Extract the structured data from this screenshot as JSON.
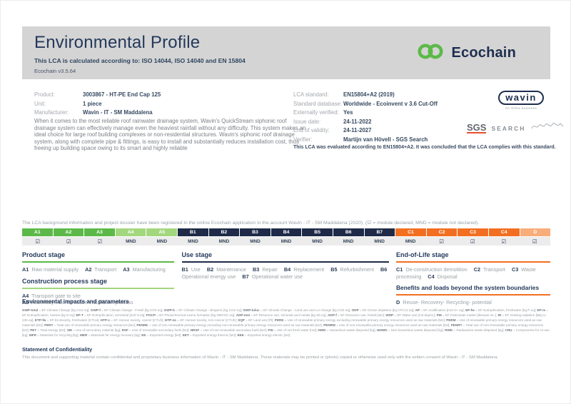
{
  "header": {
    "title": "Environmental Profile",
    "subtitle": "This LCA is calculated according to: ISO 14044, ISO 14040 and EN 15804",
    "version": "Ecochain v3.5.64",
    "logo_text": "Ecochain"
  },
  "product_info": {
    "rows": [
      {
        "label": "Product:",
        "value": "3003867 - HT-PE End Cap 125"
      },
      {
        "label": "Unit:",
        "value": "1 piece"
      },
      {
        "label": "Manufacturer:",
        "value": "Wavin - IT - SM Maddalena"
      }
    ],
    "description": "When it comes to the most reliable roof rainwater drainage system, Wavin's QuickStream siphonic roof drainage system can effectively manage even the heaviest rainfall without any difficulty. This system makes an ideal choice for large roof building complexes or non-residential structures. Wavin's siphonic roof drainage system, along with complete pipe & fittings, is easy to install and substantially reduces installation cost, thus freeing up building space owing to its smart and highly reliable"
  },
  "lca_info": {
    "rows": [
      {
        "label": "LCA standard:",
        "value": "EN15804+A2 (2019)"
      },
      {
        "label": "Standard database:",
        "value": "Worldwide - Ecoinvent v 3.6 Cut-Off"
      },
      {
        "label": "Externally verified:",
        "value": "Yes"
      },
      {
        "label": "Issue date:",
        "value": "24-11-2022"
      },
      {
        "label": "End of validity:",
        "value": "24-11-2027"
      },
      {
        "label": "Verifier:",
        "value": "Martijn van Hövell - SGS Search"
      }
    ],
    "evaluation": "This LCA was evaluated according to EN15804+A2. It was concluded that the LCA complies with this standard."
  },
  "logos": {
    "wavin": "wavin",
    "wavin_sub": "An Orbia business",
    "sgs": "SGS",
    "search": "SEARCH"
  },
  "modules": {
    "intro": "The LCA background information and project dossier have been registered in the online Ecochain application in the account Wavin - IT - SM Maddalena (2020). (☑ = module declared, MND = module not declared).",
    "columns": [
      {
        "code": "A1",
        "status": "☑",
        "group": "a"
      },
      {
        "code": "A2",
        "status": "☑",
        "group": "a"
      },
      {
        "code": "A3",
        "status": "☑",
        "group": "a"
      },
      {
        "code": "A4",
        "status": "MND",
        "group": "a-light"
      },
      {
        "code": "A5",
        "status": "MND",
        "group": "a-light"
      },
      {
        "code": "B1",
        "status": "MND",
        "group": "b"
      },
      {
        "code": "B2",
        "status": "MND",
        "group": "b"
      },
      {
        "code": "B3",
        "status": "MND",
        "group": "b"
      },
      {
        "code": "B4",
        "status": "MND",
        "group": "b"
      },
      {
        "code": "B5",
        "status": "MND",
        "group": "b"
      },
      {
        "code": "B6",
        "status": "MND",
        "group": "b"
      },
      {
        "code": "B7",
        "status": "MND",
        "group": "b"
      },
      {
        "code": "C1",
        "status": "MND",
        "group": "c"
      },
      {
        "code": "C2",
        "status": "☑",
        "group": "c"
      },
      {
        "code": "C3",
        "status": "☑",
        "group": "c"
      },
      {
        "code": "C4",
        "status": "☑",
        "group": "c"
      },
      {
        "code": "D",
        "status": "☑",
        "group": "d"
      }
    ]
  },
  "stages": {
    "product": {
      "title": "Product stage",
      "items": [
        {
          "code": "A1",
          "label": "Raw material supply"
        },
        {
          "code": "A2",
          "label": "Transport"
        },
        {
          "code": "A3",
          "label": "Manufacturing"
        }
      ]
    },
    "construction": {
      "title": "Construction process stage",
      "items": [
        {
          "code": "A4",
          "label": "Transport gate to site"
        },
        {
          "code": "A5",
          "label": "Assembly / Construction installation process"
        }
      ]
    },
    "use": {
      "title": "Use stage",
      "items": [
        {
          "code": "B1",
          "label": "Use"
        },
        {
          "code": "B2",
          "label": "Maintenance"
        },
        {
          "code": "B3",
          "label": "Repair"
        },
        {
          "code": "B4",
          "label": "Replacement"
        },
        {
          "code": "B5",
          "label": "Refurbishment"
        },
        {
          "code": "B6",
          "label": "Operational energy use"
        },
        {
          "code": "B7",
          "label": "Operational water use"
        }
      ]
    },
    "end_of_life": {
      "title": "End-of-Life stage",
      "items": [
        {
          "code": "C1",
          "label": "De-construction demolition"
        },
        {
          "code": "C2",
          "label": "Transport"
        },
        {
          "code": "C3",
          "label": "Waste processing"
        },
        {
          "code": "C4",
          "label": "Disposal"
        }
      ]
    },
    "benefits": {
      "title": "Benefits and loads beyond the system boundaries",
      "items": [
        {
          "code": "D",
          "label": "Reuse- Recovery- Recycling- potential"
        }
      ]
    }
  },
  "impacts": {
    "title": "Environmental impacts and parameters",
    "items": [
      {
        "code": "GWP-total",
        "desc": "EF Climate Change [kg CO2 eq]"
      },
      {
        "code": "GWP-f",
        "desc": "EF Climate change - Fossil [kg CO2 eq]"
      },
      {
        "code": "GWP-b",
        "desc": "EF Climate Change - Biogenic [kg CO2 eq]"
      },
      {
        "code": "GWP-luluc",
        "desc": "EF Climate Change - Land use and LU change [kg CO2 eq]"
      },
      {
        "code": "ODP",
        "desc": "EF Ozone depletion [kg CFC11 eq]"
      },
      {
        "code": "AP",
        "desc": "EF Acidification [mol H+ eq]"
      },
      {
        "code": "EP-fw",
        "desc": "EF Eutrophication, freshwater [kg P eq]"
      },
      {
        "code": "EP-m",
        "desc": "EF Eutrophication, marine [kg N eq]"
      },
      {
        "code": "EP-T",
        "desc": "EF Eutrophication, terrestrial [mol N eq]"
      },
      {
        "code": "POCP",
        "desc": "EF Photochemical ozone formation [kg NMVOC eq]"
      },
      {
        "code": "ADP-mm",
        "desc": "EF Resource use, minerals and metals [kg Sb eq]"
      },
      {
        "code": "ADP-f",
        "desc": "EF Resource use, fossils [MJ]"
      },
      {
        "code": "WDP",
        "desc": "EF Water use [m3 depriv.]"
      },
      {
        "code": "PM",
        "desc": "EF Particulate matter [disease inc.]"
      },
      {
        "code": "IR",
        "desc": "EF Ionising radiation [kBq U-235 eq]"
      },
      {
        "code": "ETP-fw",
        "desc": "EF Ecotoxicity, freshwater [CTUe]"
      },
      {
        "code": "HTP-c",
        "desc": "EF Human toxicity, cancer [CTUh]"
      },
      {
        "code": "HTP-nc",
        "desc": "EF Human toxicity, non-cancer [CTUh]"
      },
      {
        "code": "SQP",
        "desc": "EF Land use [Pt]"
      },
      {
        "code": "PERE",
        "desc": "Use of renewable primary energy excluding renewable primary energy resources used as raw materials [MJ]"
      },
      {
        "code": "PERM",
        "desc": "Use of renewable primary energy resources used as raw materials [MJ]"
      },
      {
        "code": "PERT",
        "desc": "Total use of renewable primary energy resources [MJ]"
      },
      {
        "code": "PENRE",
        "desc": "Use of non renewable primary energy excluding non-renewable primary energy resources used as raw materials [MJ]"
      },
      {
        "code": "PENRM",
        "desc": "Use of non-renewable primary energy resources used as raw materials [MJ]"
      },
      {
        "code": "PENRT",
        "desc": "Total use of non-renewable primary energy resources [MJ]"
      },
      {
        "code": "PET",
        "desc": "Total energy [MJ]"
      },
      {
        "code": "SM",
        "desc": "Use of secondary material [kg]"
      },
      {
        "code": "RSF",
        "desc": "Use of renewable secondary fuels [MJ]"
      },
      {
        "code": "NRSF",
        "desc": "Use of non-renewable secondary fuels [MJ]"
      },
      {
        "code": "FW",
        "desc": "Use of net fresh water [m3]"
      },
      {
        "code": "HWD",
        "desc": "Hazardous waste disposed [kg]"
      },
      {
        "code": "NHWD",
        "desc": "Non-hazardous waste disposed [kg]"
      },
      {
        "code": "RWD",
        "desc": "Radioactive waste disposed [kg]"
      },
      {
        "code": "CRU",
        "desc": "Components for re-use [kg]"
      },
      {
        "code": "MFR",
        "desc": "Materials for recycling [kg]"
      },
      {
        "code": "MER",
        "desc": "Materials for energy recovery [kg]"
      },
      {
        "code": "EE",
        "desc": "Exported energy [MJ]"
      },
      {
        "code": "EET",
        "desc": "Exported energy thermic [MJ]"
      },
      {
        "code": "EEE",
        "desc": "Exported energy electric [MJ]"
      }
    ]
  },
  "confidentiality": {
    "title": "Statement of Confidentiality",
    "text": "This document and supporting material contain confidential and proprietary business information of Wavin - IT - SM Maddalena. These materials may be printed or (photo) copied or otherwise used only with the written consent of Wavin - IT - SM Maddalena."
  },
  "colors": {
    "product_stage_green": "#5cb949",
    "construction_light_green": "#a3d77d",
    "use_stage_navy": "#1e2a48",
    "end_of_life_orange": "#f26f21",
    "benefits_light_orange": "#f8ad7b",
    "header_gray": "#d4d4d4",
    "brand_navy": "#24395b"
  }
}
